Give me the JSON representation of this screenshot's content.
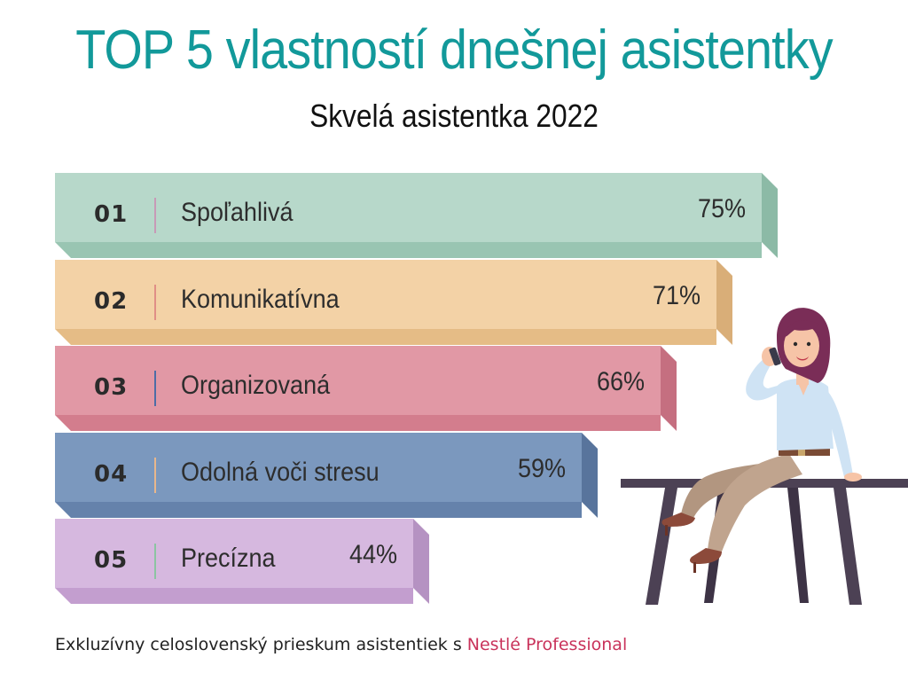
{
  "title": "TOP 5 vlastností dnešnej asistentky",
  "subtitle": "Skvelá asistentka 2022",
  "footer": {
    "text": "Exkluzívny celoslovenský prieskum asistentiek s ",
    "brand": "Nestlé Professional"
  },
  "chart_data": {
    "type": "bar",
    "orientation": "horizontal",
    "title": "TOP 5 vlastností dnešnej asistentky",
    "subtitle": "Skvelá asistentka 2022",
    "categories": [
      "Spoľahlivá",
      "Komunikatívna",
      "Organizovaná",
      "Odolná voči stresu",
      "Precízna"
    ],
    "ranks": [
      "01",
      "02",
      "03",
      "04",
      "05"
    ],
    "values": [
      75,
      71,
      66,
      59,
      44
    ],
    "value_labels": [
      "75%",
      "71%",
      "66%",
      "59%",
      "44%"
    ],
    "colors": [
      {
        "face": "#b7d8ca",
        "bottom": "#99c5b2",
        "side": "#8cbaa6",
        "divider": "#c79ab7"
      },
      {
        "face": "#f3d2a6",
        "bottom": "#e5bc86",
        "side": "#d9ae78",
        "divider": "#e08f86"
      },
      {
        "face": "#e198a5",
        "bottom": "#d37d8d",
        "side": "#c56f80",
        "divider": "#4d6da6"
      },
      {
        "face": "#7b98be",
        "bottom": "#6582ab",
        "side": "#58749c",
        "divider": "#e8b78c"
      },
      {
        "face": "#d6b8df",
        "bottom": "#c39ecf",
        "side": "#b592c2",
        "divider": "#8cc4a2"
      }
    ],
    "xlim": [
      0,
      75
    ],
    "grid": false,
    "legend": "none"
  },
  "illustration": {
    "name": "assistant-on-phone-sitting-on-table",
    "colors": {
      "hair": "#7a2d57",
      "skin": "#f6c4a7",
      "blouse": "#cfe3f4",
      "pants": "#b29680",
      "shoes": "#8c4a3a",
      "table": "#4c4154"
    }
  }
}
